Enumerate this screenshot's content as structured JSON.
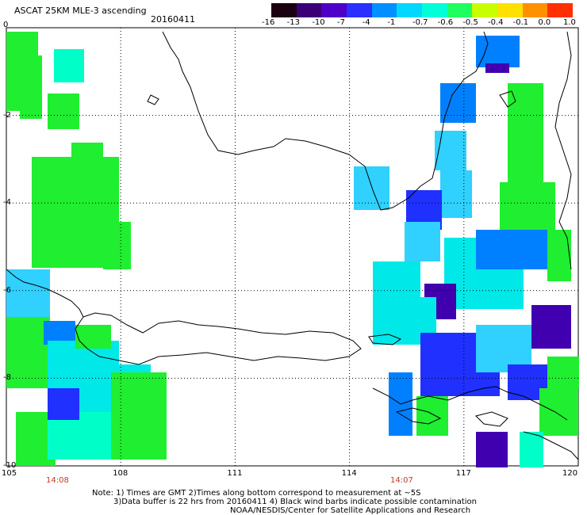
{
  "header": {
    "title": "ASCAT 25KM MLE-3 ascending",
    "date": "20160411"
  },
  "colorbar": {
    "labels": [
      "-16",
      "-13",
      "-10",
      "-7",
      "-4",
      "-1",
      "-0.7",
      "-0.6",
      "-0.5",
      "-0.4",
      "-0.1",
      "0.0",
      "1.0"
    ],
    "colors": [
      "#1a0010",
      "#3b0078",
      "#4f00c8",
      "#2a30ff",
      "#0090ff",
      "#00d8ff",
      "#00ffd8",
      "#20ff60",
      "#c8ff00",
      "#ffe000",
      "#ff9000",
      "#ff3000"
    ]
  },
  "axes": {
    "x_ticks": [
      "105",
      "108",
      "111",
      "114",
      "117",
      "120"
    ],
    "y_ticks": [
      "0",
      "-2",
      "-4",
      "-6",
      "-8",
      "-10"
    ]
  },
  "times": [
    "14:08",
    "14:07"
  ],
  "notes": [
    "Note: 1) Times are GMT 2)Times along bottom correspond to measurement at ~5S",
    "3)Data buffer is 22 hrs from 20160411 4) Black wind barbs indicate possible contamination",
    "NOAA/NESDIS/Center for Satellite Applications and Research"
  ]
}
